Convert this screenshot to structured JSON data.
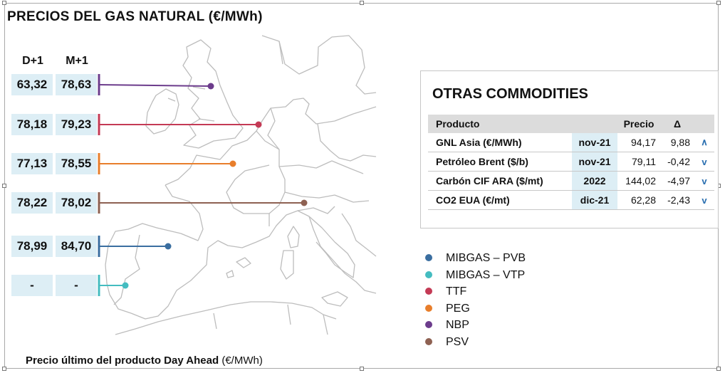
{
  "title": "PRECIOS DEL GAS NATURAL (€/MWh)",
  "columns": {
    "d1": "D+1",
    "m1": "M+1"
  },
  "chart_data": {
    "type": "table",
    "series": [
      {
        "name": "NBP",
        "color": "#6c3c8c",
        "d1": "63,32",
        "m1": "78,63"
      },
      {
        "name": "TTF",
        "color": "#c43a55",
        "d1": "78,18",
        "m1": "79,23"
      },
      {
        "name": "PEG",
        "color": "#e87e2b",
        "d1": "77,13",
        "m1": "78,55"
      },
      {
        "name": "PSV",
        "color": "#8e6152",
        "d1": "78,22",
        "m1": "78,02"
      },
      {
        "name": "MIBGAS – PVB",
        "color": "#3a6ea0",
        "d1": "78,99",
        "m1": "84,70"
      },
      {
        "name": "MIBGAS – VTP",
        "color": "#44bcc0",
        "d1": "-",
        "m1": "-"
      }
    ]
  },
  "footer": {
    "label": "Precio  último del producto Day Ahead ",
    "unit": "(€/MWh)"
  },
  "commodities": {
    "title": "OTRAS COMMODITIES",
    "headers": {
      "product": "Producto",
      "price": "Precio",
      "delta": "Δ"
    },
    "rows": [
      {
        "product": "GNL Asia (€/MWh)",
        "period": "nov-21",
        "price": "94,17",
        "delta": "9,88",
        "trend": "up",
        "arrow": "∧"
      },
      {
        "product": "Petróleo Brent ($/b)",
        "period": "nov-21",
        "price": "79,11",
        "delta": "-0,42",
        "trend": "down",
        "arrow": "v"
      },
      {
        "product": "Carbón CIF ARA ($/mt)",
        "period": "2022",
        "price": "144,02",
        "delta": "-4,97",
        "trend": "down",
        "arrow": "v"
      },
      {
        "product": "CO2 EUA (€/mt)",
        "period": "dic-21",
        "price": "62,28",
        "delta": "-2,43",
        "trend": "down",
        "arrow": "v"
      }
    ]
  },
  "legend": [
    {
      "label": "MIBGAS – PVB",
      "color": "#3a6ea0"
    },
    {
      "label": "MIBGAS – VTP",
      "color": "#44bcc0"
    },
    {
      "label": "TTF",
      "color": "#c43a55"
    },
    {
      "label": "PEG",
      "color": "#e87e2b"
    },
    {
      "label": "NBP",
      "color": "#6c3c8c"
    },
    {
      "label": "PSV",
      "color": "#8e6152"
    }
  ]
}
